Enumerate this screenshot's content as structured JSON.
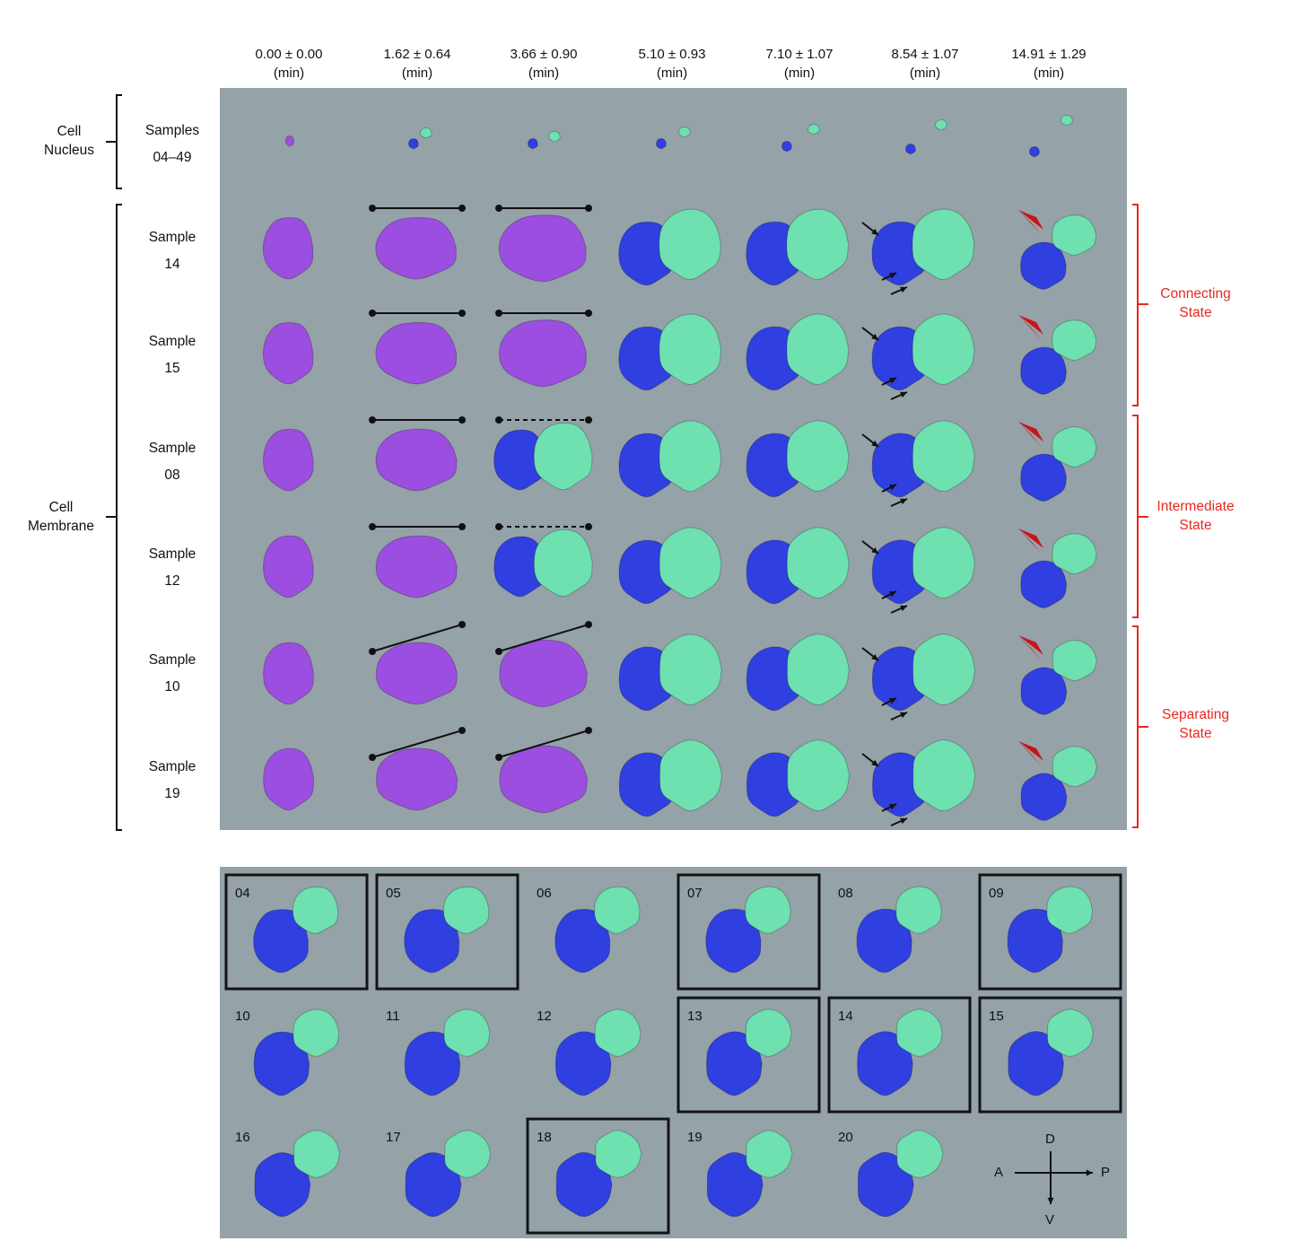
{
  "time_points": [
    {
      "value": "0.00 ± 0.00",
      "unit": "(min)"
    },
    {
      "value": "1.62 ± 0.64",
      "unit": "(min)"
    },
    {
      "value": "3.66 ± 0.90",
      "unit": "(min)"
    },
    {
      "value": "5.10 ± 0.93",
      "unit": "(min)"
    },
    {
      "value": "7.10 ± 1.07",
      "unit": "(min)"
    },
    {
      "value": "8.54 ± 1.07",
      "unit": "(min)"
    },
    {
      "value": "14.91 ± 1.29",
      "unit": "(min)"
    }
  ],
  "groups": {
    "nucleus": {
      "line1": "Cell",
      "line2": "Nucleus"
    },
    "membrane": {
      "line1": "Cell",
      "line2": "Membrane"
    }
  },
  "nucleus_row": {
    "line1": "Samples",
    "line2": "04–49"
  },
  "membrane_rows": [
    {
      "line1": "Sample",
      "line2": "14",
      "dashed_at_3": false,
      "tilted": false
    },
    {
      "line1": "Sample",
      "line2": "15",
      "dashed_at_3": false,
      "tilted": false
    },
    {
      "line1": "Sample",
      "line2": "08",
      "dashed_at_3": true,
      "tilted": false
    },
    {
      "line1": "Sample",
      "line2": "12",
      "dashed_at_3": true,
      "tilted": false
    },
    {
      "line1": "Sample",
      "line2": "10",
      "dashed_at_3": false,
      "tilted": true
    },
    {
      "line1": "Sample",
      "line2": "19",
      "dashed_at_3": false,
      "tilted": true
    }
  ],
  "states": [
    {
      "line1": "Connecting",
      "line2": "State"
    },
    {
      "line1": "Intermediate",
      "line2": "State"
    },
    {
      "line1": "Separating",
      "line2": "State"
    }
  ],
  "sample_grid": [
    {
      "id": "04",
      "boxed": true
    },
    {
      "id": "05",
      "boxed": true
    },
    {
      "id": "06",
      "boxed": false
    },
    {
      "id": "07",
      "boxed": true
    },
    {
      "id": "08",
      "boxed": false
    },
    {
      "id": "09",
      "boxed": true
    },
    {
      "id": "10",
      "boxed": false
    },
    {
      "id": "11",
      "boxed": false
    },
    {
      "id": "12",
      "boxed": false
    },
    {
      "id": "13",
      "boxed": true
    },
    {
      "id": "14",
      "boxed": true
    },
    {
      "id": "15",
      "boxed": true
    },
    {
      "id": "16",
      "boxed": false
    },
    {
      "id": "17",
      "boxed": false
    },
    {
      "id": "18",
      "boxed": true
    },
    {
      "id": "19",
      "boxed": false
    },
    {
      "id": "20",
      "boxed": false
    }
  ],
  "axes": {
    "dorsal": "D",
    "ventral": "V",
    "anterior": "A",
    "posterior": "P"
  },
  "colors": {
    "panel": "#95a2a8",
    "undivided_cell": "#9b4ee0",
    "anterior_cell": "#2f3fe0",
    "posterior_cell": "#6fe0b0",
    "state_bracket": "#e8281f",
    "arrowhead": "#c8141a"
  }
}
